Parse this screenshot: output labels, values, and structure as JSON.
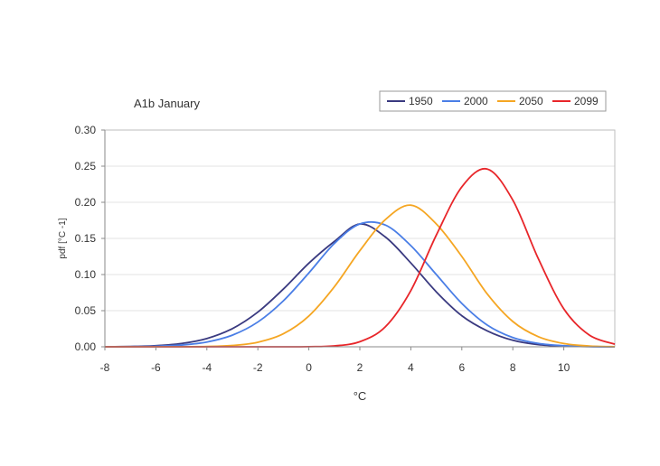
{
  "chart_data": {
    "type": "line",
    "title": "A1b January",
    "xlabel": "°C",
    "ylabel": "pdf [°C -1]",
    "xlim": [
      -8,
      12
    ],
    "ylim": [
      0,
      0.3
    ],
    "x_ticks": [
      "-8",
      "-6",
      "-4",
      "-2",
      "0",
      "2",
      "4",
      "6",
      "8",
      "10"
    ],
    "x_tick_values": [
      -8,
      -6,
      -4,
      -2,
      0,
      2,
      4,
      6,
      8,
      10
    ],
    "y_ticks": [
      "0.00",
      "0.05",
      "0.10",
      "0.15",
      "0.20",
      "0.25",
      "0.30"
    ],
    "y_tick_values": [
      0,
      0.05,
      0.1,
      0.15,
      0.2,
      0.25,
      0.3
    ],
    "grid": true,
    "legend_position": "top-right",
    "x": [
      -8,
      -7,
      -6,
      -5,
      -4,
      -3,
      -2,
      -1,
      0,
      1,
      2,
      3,
      4,
      5,
      6,
      7,
      8,
      9,
      10,
      11,
      12
    ],
    "series": [
      {
        "name": "1950",
        "color": "#3a3a80",
        "values": [
          0.0,
          0.0005,
          0.0016,
          0.0045,
          0.0114,
          0.0251,
          0.048,
          0.0799,
          0.1157,
          0.1458,
          0.17,
          0.152,
          0.116,
          0.076,
          0.043,
          0.022,
          0.009,
          0.003,
          0.001,
          0.0003,
          0.0001
        ]
      },
      {
        "name": "2000",
        "color": "#4a7ee6",
        "values": [
          0.0,
          0.0002,
          0.0008,
          0.0024,
          0.0066,
          0.0161,
          0.0343,
          0.0636,
          0.1022,
          0.143,
          0.17,
          0.1685,
          0.14,
          0.1,
          0.06,
          0.03,
          0.0128,
          0.0047,
          0.0015,
          0.0004,
          0.0001
        ]
      },
      {
        "name": "2050",
        "color": "#f5a623",
        "values": [
          0.0,
          0.0,
          0.0,
          0.0001,
          0.0004,
          0.0018,
          0.0063,
          0.018,
          0.0426,
          0.083,
          0.133,
          0.176,
          0.196,
          0.17,
          0.125,
          0.073,
          0.035,
          0.014,
          0.0045,
          0.0011,
          0.0002
        ]
      },
      {
        "name": "2099",
        "color": "#e8262a",
        "values": [
          0.0,
          0.0,
          0.0,
          0.0,
          0.0,
          0.0,
          0.0,
          0.0,
          0.0002,
          0.0013,
          0.007,
          0.0277,
          0.0778,
          0.1546,
          0.2213,
          0.246,
          0.203,
          0.122,
          0.0525,
          0.0162,
          0.0036
        ]
      }
    ]
  }
}
